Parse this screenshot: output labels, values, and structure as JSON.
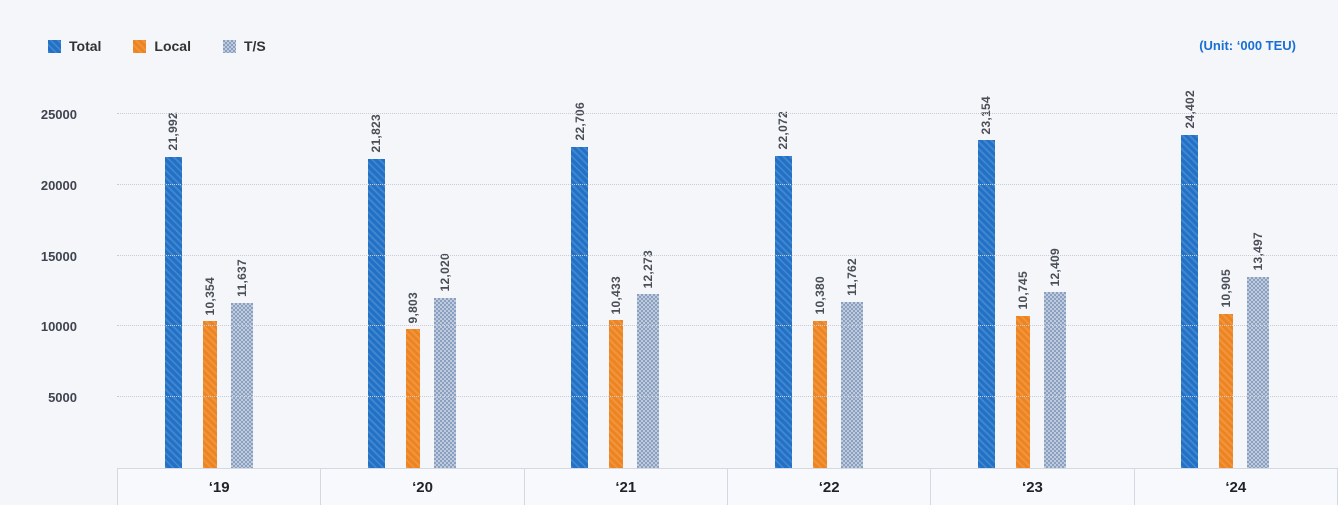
{
  "legend": {
    "items": [
      {
        "label": "Total",
        "color": "#2171c6",
        "pattern": "diag"
      },
      {
        "label": "Local",
        "color": "#ee8420",
        "pattern": "diag"
      },
      {
        "label": "T/S",
        "color": "#8aa0c0",
        "pattern": "check"
      }
    ]
  },
  "unit_label": "(Unit: ‘000 TEU)",
  "chart_data": {
    "type": "bar",
    "title": "",
    "unit": "‘000 TEU",
    "categories": [
      "‘19",
      "‘20",
      "‘21",
      "‘22",
      "‘23",
      "‘24"
    ],
    "series": [
      {
        "name": "Total",
        "color": "#2171c6",
        "pattern": "diag",
        "values": [
          21992,
          21823,
          22706,
          22072,
          23154,
          24402
        ],
        "labels": [
          "21,992",
          "21,823",
          "22,706",
          "22,072",
          "23,154",
          "24,402"
        ]
      },
      {
        "name": "Local",
        "color": "#ee8420",
        "pattern": "diag",
        "values": [
          10354,
          9803,
          10433,
          10380,
          10745,
          10905
        ],
        "labels": [
          "10,354",
          "9,803",
          "10,433",
          "10,380",
          "10,745",
          "10,905"
        ]
      },
      {
        "name": "T/S",
        "color": "#8aa0c0",
        "pattern": "check",
        "values": [
          11637,
          12020,
          12273,
          11762,
          12409,
          13497
        ],
        "labels": [
          "11,637",
          "12,020",
          "12,273",
          "11,762",
          "12,409",
          "13,497"
        ]
      }
    ],
    "ylim": [
      0,
      26700
    ],
    "yticks": [
      5000,
      10000,
      15000,
      20000,
      25000
    ],
    "ytick_labels": [
      "5000",
      "10000",
      "15000",
      "20000",
      "25000"
    ],
    "grid": true,
    "legend_position": "top-left"
  }
}
